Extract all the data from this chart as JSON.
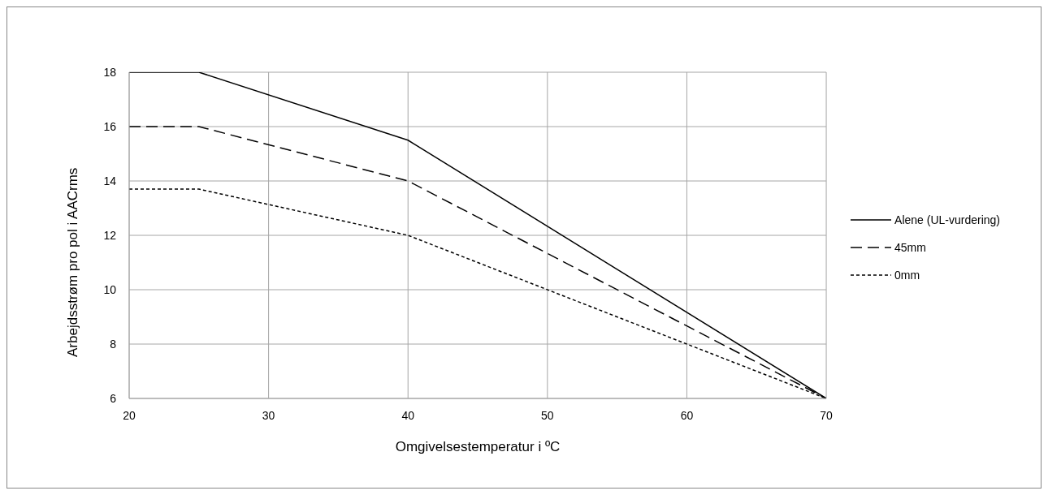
{
  "chart_data": {
    "type": "line",
    "xlabel": "Omgivelsestemperatur i ºC",
    "ylabel": "Arbejdsstrøm pro pol i AACrms",
    "x": [
      20,
      25,
      40,
      70
    ],
    "series": [
      {
        "name": "Alene (UL-vurdering)",
        "color": "#000000",
        "line_style": "solid",
        "values": [
          18,
          18,
          15.5,
          6
        ]
      },
      {
        "name": "45mm",
        "color": "#000000",
        "line_style": "dashed",
        "values": [
          16,
          16,
          14,
          6
        ]
      },
      {
        "name": "0mm",
        "color": "#000000",
        "line_style": "dotted",
        "values": [
          13.7,
          13.7,
          12,
          6
        ]
      }
    ],
    "xlim": [
      20,
      70
    ],
    "xticks": [
      20,
      30,
      40,
      50,
      60,
      70
    ],
    "ylim": [
      6,
      18
    ],
    "yticks": [
      6,
      8,
      10,
      12,
      14,
      16,
      18
    ],
    "grid": true,
    "legend": "right",
    "marker": "none"
  }
}
